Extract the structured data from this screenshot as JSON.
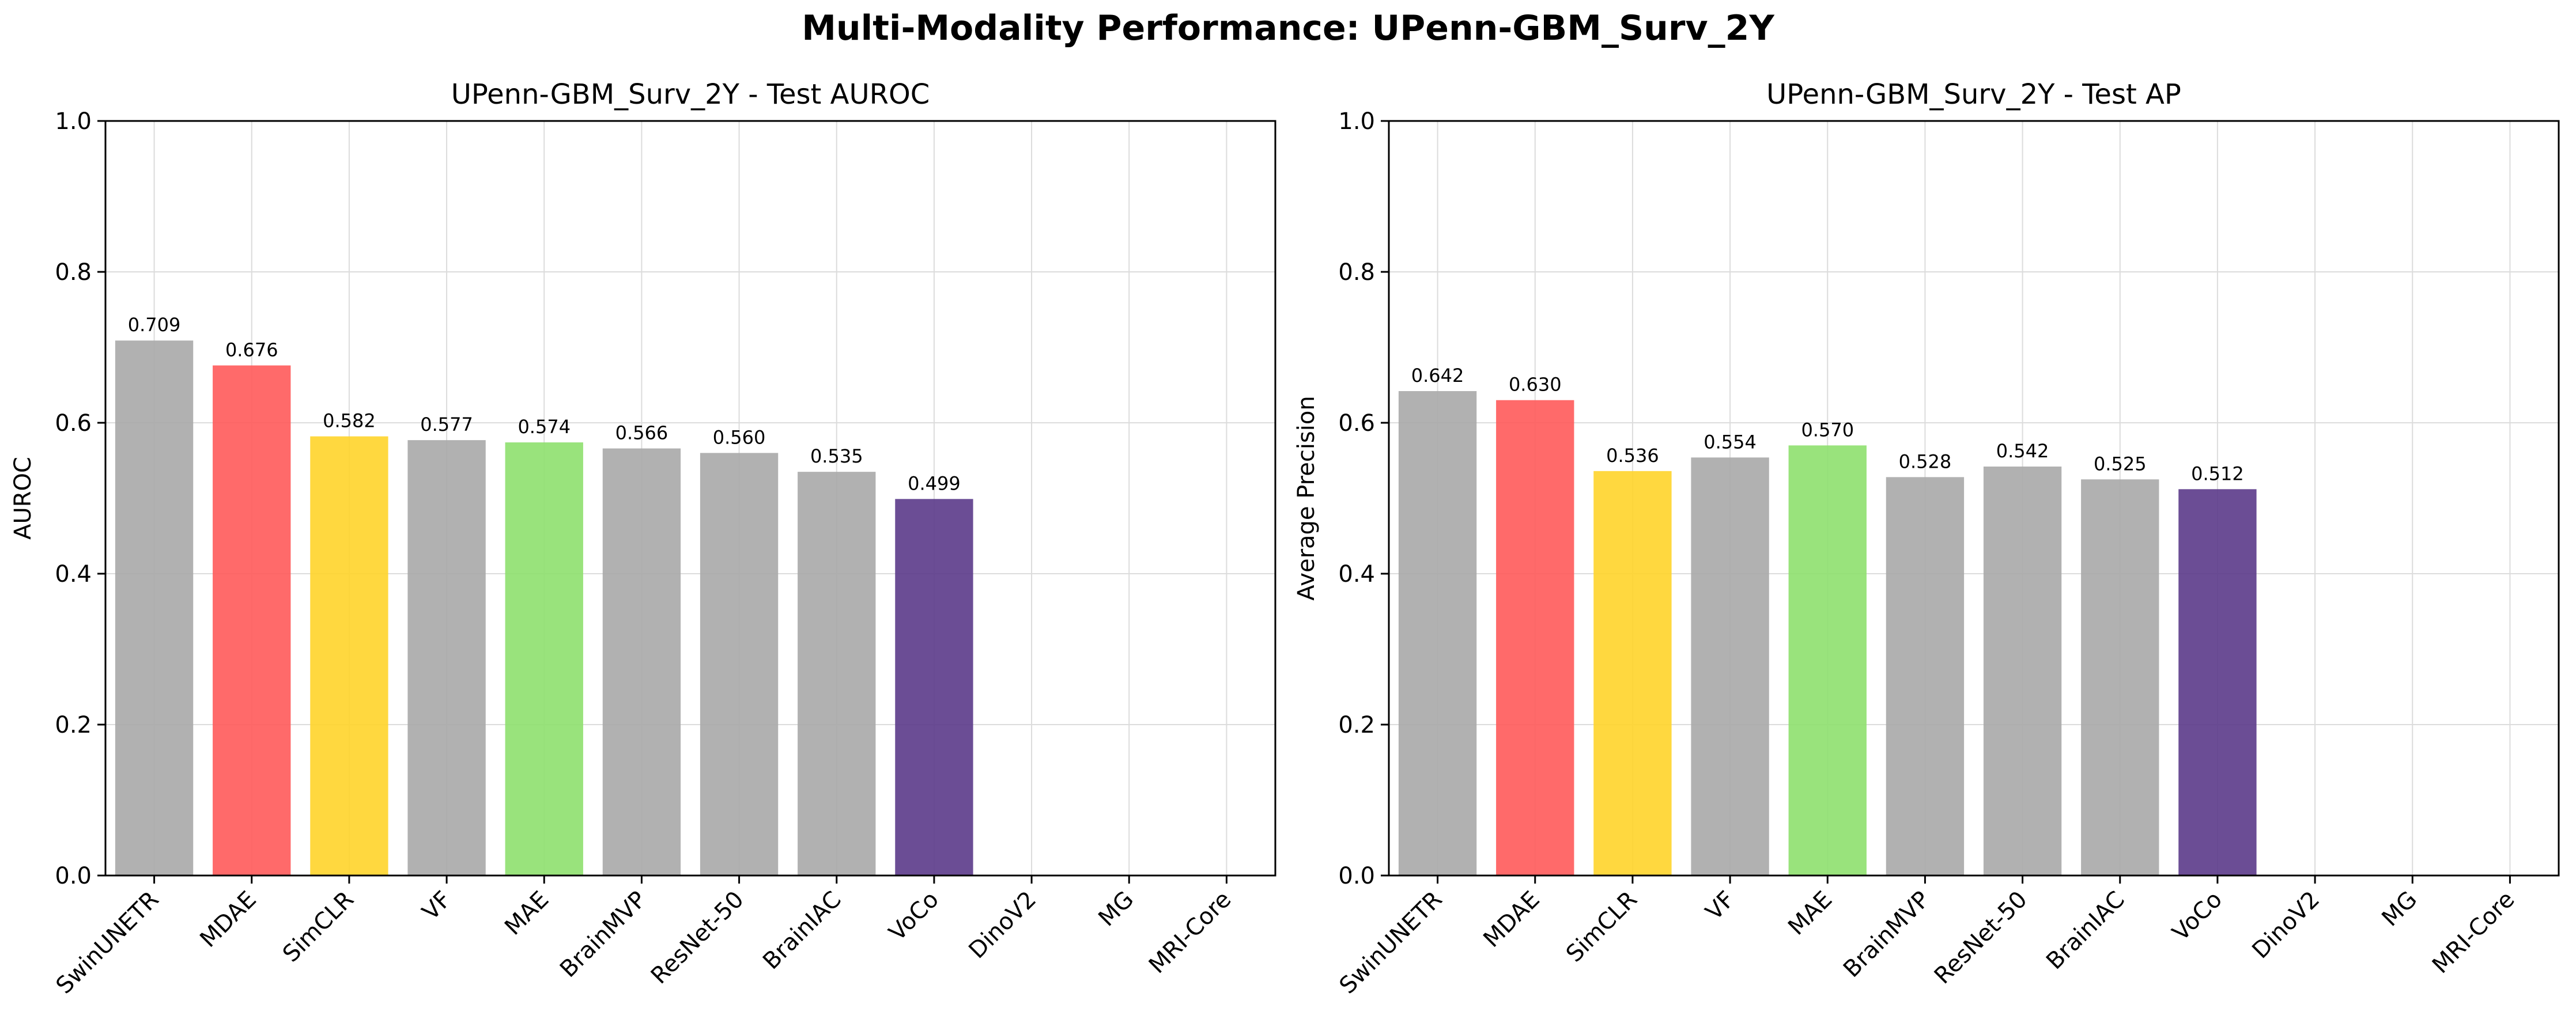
{
  "suptitle": "Multi-Modality Performance: UPenn-GBM_Surv_2Y",
  "chart_data": [
    {
      "type": "bar",
      "title": "UPenn-GBM_Surv_2Y - Test AUROC",
      "xlabel": "",
      "ylabel": "AUROC",
      "ylim": [
        0,
        1.0
      ],
      "yticks": [
        "0.0",
        "0.2",
        "0.4",
        "0.6",
        "0.8",
        "1.0"
      ],
      "grid": true,
      "categories": [
        "SwinUNETR",
        "MDAE",
        "SimCLR",
        "VF",
        "MAE",
        "BrainMVP",
        "ResNet-50",
        "BrainIAC",
        "VoCo",
        "DinoV2",
        "MG",
        "MRI-Core"
      ],
      "values": [
        0.709,
        0.676,
        0.582,
        0.577,
        0.574,
        0.566,
        0.56,
        0.535,
        0.499,
        null,
        null,
        null
      ],
      "labels": [
        "0.709",
        "0.676",
        "0.582",
        "0.577",
        "0.574",
        "0.566",
        "0.560",
        "0.535",
        "0.499",
        "",
        "",
        ""
      ],
      "colors": [
        "#a9a9a9",
        "#ff5a5a",
        "#ffd42a",
        "#a9a9a9",
        "#8ee06e",
        "#a9a9a9",
        "#a9a9a9",
        "#a9a9a9",
        "#5b3a8a",
        "#a9a9a9",
        "#a9a9a9",
        "#a9a9a9"
      ]
    },
    {
      "type": "bar",
      "title": "UPenn-GBM_Surv_2Y - Test AP",
      "xlabel": "",
      "ylabel": "Average Precision",
      "ylim": [
        0,
        1.0
      ],
      "yticks": [
        "0.0",
        "0.2",
        "0.4",
        "0.6",
        "0.8",
        "1.0"
      ],
      "grid": true,
      "categories": [
        "SwinUNETR",
        "MDAE",
        "SimCLR",
        "VF",
        "MAE",
        "BrainMVP",
        "ResNet-50",
        "BrainIAC",
        "VoCo",
        "DinoV2",
        "MG",
        "MRI-Core"
      ],
      "values": [
        0.642,
        0.63,
        0.536,
        0.554,
        0.57,
        0.528,
        0.542,
        0.525,
        0.512,
        null,
        null,
        null
      ],
      "labels": [
        "0.642",
        "0.630",
        "0.536",
        "0.554",
        "0.570",
        "0.528",
        "0.542",
        "0.525",
        "0.512",
        "",
        "",
        ""
      ],
      "colors": [
        "#a9a9a9",
        "#ff5a5a",
        "#ffd42a",
        "#a9a9a9",
        "#8ee06e",
        "#a9a9a9",
        "#a9a9a9",
        "#a9a9a9",
        "#5b3a8a",
        "#a9a9a9",
        "#a9a9a9",
        "#a9a9a9"
      ]
    }
  ]
}
